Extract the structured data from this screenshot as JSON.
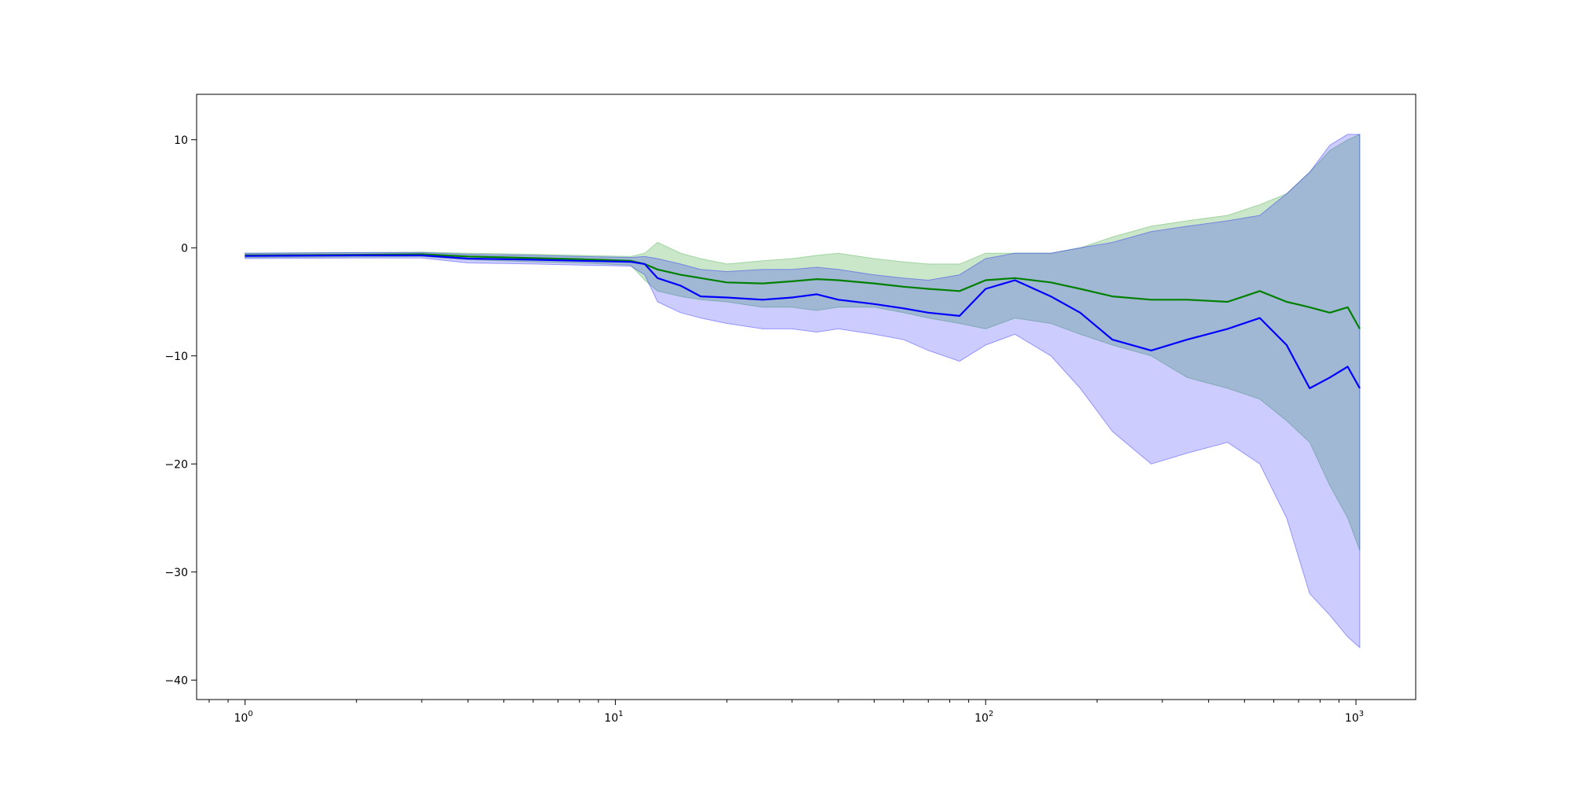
{
  "chart_data": {
    "type": "line",
    "title": "",
    "xlabel": "",
    "ylabel": "",
    "xscale": "log",
    "xlim": [
      0.74,
      1450
    ],
    "ylim": [
      -41.8,
      14.2
    ],
    "grid": false,
    "legend": "none",
    "x_ticks": [
      {
        "value": 1,
        "base": "10",
        "exp": "0"
      },
      {
        "value": 10,
        "base": "10",
        "exp": "1"
      },
      {
        "value": 100,
        "base": "10",
        "exp": "2"
      },
      {
        "value": 1000,
        "base": "10",
        "exp": "3"
      }
    ],
    "y_ticks": [
      {
        "value": 10,
        "label": "10"
      },
      {
        "value": 0,
        "label": "0"
      },
      {
        "value": -10,
        "label": "−10"
      },
      {
        "value": -20,
        "label": "−20"
      },
      {
        "value": -30,
        "label": "−30"
      },
      {
        "value": -40,
        "label": "−40"
      }
    ],
    "series": [
      {
        "color": "#008000",
        "band_color": "#2ca02c",
        "band_opacity": 0.25,
        "points": [
          {
            "x": 1,
            "y": -0.7,
            "lo": -0.9,
            "hi": -0.5
          },
          {
            "x": 2,
            "y": -0.65,
            "lo": -0.85,
            "hi": -0.45
          },
          {
            "x": 3,
            "y": -0.6,
            "lo": -0.8,
            "hi": -0.4
          },
          {
            "x": 4,
            "y": -0.8,
            "lo": -1.1,
            "hi": -0.5
          },
          {
            "x": 6,
            "y": -0.95,
            "lo": -1.3,
            "hi": -0.6
          },
          {
            "x": 8,
            "y": -1.05,
            "lo": -1.4,
            "hi": -0.7
          },
          {
            "x": 11,
            "y": -1.2,
            "lo": -1.6,
            "hi": -0.8
          },
          {
            "x": 12,
            "y": -1.5,
            "lo": -3.0,
            "hi": -0.5
          },
          {
            "x": 13,
            "y": -2.0,
            "lo": -4.0,
            "hi": 0.5
          },
          {
            "x": 15,
            "y": -2.5,
            "lo": -4.5,
            "hi": -0.5
          },
          {
            "x": 17,
            "y": -2.8,
            "lo": -4.8,
            "hi": -1.0
          },
          {
            "x": 20,
            "y": -3.2,
            "lo": -5.0,
            "hi": -1.5
          },
          {
            "x": 25,
            "y": -3.3,
            "lo": -5.5,
            "hi": -1.2
          },
          {
            "x": 30,
            "y": -3.1,
            "lo": -5.5,
            "hi": -1.0
          },
          {
            "x": 35,
            "y": -2.9,
            "lo": -5.8,
            "hi": -0.7
          },
          {
            "x": 40,
            "y": -3.0,
            "lo": -5.5,
            "hi": -0.5
          },
          {
            "x": 50,
            "y": -3.3,
            "lo": -5.5,
            "hi": -1.0
          },
          {
            "x": 60,
            "y": -3.6,
            "lo": -6.0,
            "hi": -1.3
          },
          {
            "x": 70,
            "y": -3.8,
            "lo": -6.5,
            "hi": -1.5
          },
          {
            "x": 85,
            "y": -4.0,
            "lo": -7.0,
            "hi": -1.5
          },
          {
            "x": 100,
            "y": -3.0,
            "lo": -7.5,
            "hi": -0.5
          },
          {
            "x": 120,
            "y": -2.8,
            "lo": -6.5,
            "hi": -0.5
          },
          {
            "x": 150,
            "y": -3.2,
            "lo": -7.0,
            "hi": -0.5
          },
          {
            "x": 180,
            "y": -3.8,
            "lo": -8.0,
            "hi": 0.0
          },
          {
            "x": 220,
            "y": -4.5,
            "lo": -9.0,
            "hi": 1.0
          },
          {
            "x": 280,
            "y": -4.8,
            "lo": -10.0,
            "hi": 2.0
          },
          {
            "x": 350,
            "y": -4.8,
            "lo": -12.0,
            "hi": 2.5
          },
          {
            "x": 450,
            "y": -5.0,
            "lo": -13.0,
            "hi": 3.0
          },
          {
            "x": 550,
            "y": -4.0,
            "lo": -14.0,
            "hi": 4.0
          },
          {
            "x": 650,
            "y": -5.0,
            "lo": -16.0,
            "hi": 5.0
          },
          {
            "x": 750,
            "y": -5.5,
            "lo": -18.0,
            "hi": 7.0
          },
          {
            "x": 850,
            "y": -6.0,
            "lo": -22.0,
            "hi": 9.0
          },
          {
            "x": 950,
            "y": -5.5,
            "lo": -25.0,
            "hi": 10.0
          },
          {
            "x": 1024,
            "y": -7.5,
            "lo": -28.0,
            "hi": 10.5
          }
        ]
      },
      {
        "color": "#0000ff",
        "band_color": "#0000ff",
        "band_opacity": 0.2,
        "points": [
          {
            "x": 1,
            "y": -0.75,
            "lo": -1.0,
            "hi": -0.5
          },
          {
            "x": 2,
            "y": -0.7,
            "lo": -0.95,
            "hi": -0.45
          },
          {
            "x": 3,
            "y": -0.7,
            "lo": -0.95,
            "hi": -0.45
          },
          {
            "x": 4,
            "y": -1.0,
            "lo": -1.4,
            "hi": -0.6
          },
          {
            "x": 6,
            "y": -1.1,
            "lo": -1.5,
            "hi": -0.7
          },
          {
            "x": 8,
            "y": -1.2,
            "lo": -1.6,
            "hi": -0.8
          },
          {
            "x": 11,
            "y": -1.3,
            "lo": -1.7,
            "hi": -0.9
          },
          {
            "x": 12,
            "y": -1.5,
            "lo": -2.5,
            "hi": -0.8
          },
          {
            "x": 13,
            "y": -2.8,
            "lo": -5.0,
            "hi": -1.0
          },
          {
            "x": 15,
            "y": -3.5,
            "lo": -6.0,
            "hi": -1.5
          },
          {
            "x": 17,
            "y": -4.5,
            "lo": -6.5,
            "hi": -2.0
          },
          {
            "x": 20,
            "y": -4.6,
            "lo": -7.0,
            "hi": -2.2
          },
          {
            "x": 25,
            "y": -4.8,
            "lo": -7.5,
            "hi": -2.0
          },
          {
            "x": 30,
            "y": -4.6,
            "lo": -7.5,
            "hi": -2.0
          },
          {
            "x": 35,
            "y": -4.3,
            "lo": -7.8,
            "hi": -1.8
          },
          {
            "x": 40,
            "y": -4.8,
            "lo": -7.5,
            "hi": -2.0
          },
          {
            "x": 50,
            "y": -5.2,
            "lo": -8.0,
            "hi": -2.5
          },
          {
            "x": 60,
            "y": -5.6,
            "lo": -8.5,
            "hi": -2.8
          },
          {
            "x": 70,
            "y": -6.0,
            "lo": -9.5,
            "hi": -3.0
          },
          {
            "x": 85,
            "y": -6.3,
            "lo": -10.5,
            "hi": -2.5
          },
          {
            "x": 100,
            "y": -3.8,
            "lo": -9.0,
            "hi": -1.0
          },
          {
            "x": 120,
            "y": -3.0,
            "lo": -8.0,
            "hi": -0.5
          },
          {
            "x": 150,
            "y": -4.5,
            "lo": -10.0,
            "hi": -0.5
          },
          {
            "x": 180,
            "y": -6.0,
            "lo": -13.0,
            "hi": 0.0
          },
          {
            "x": 220,
            "y": -8.5,
            "lo": -17.0,
            "hi": 0.5
          },
          {
            "x": 280,
            "y": -9.5,
            "lo": -20.0,
            "hi": 1.5
          },
          {
            "x": 350,
            "y": -8.5,
            "lo": -19.0,
            "hi": 2.0
          },
          {
            "x": 450,
            "y": -7.5,
            "lo": -18.0,
            "hi": 2.5
          },
          {
            "x": 550,
            "y": -6.5,
            "lo": -20.0,
            "hi": 3.0
          },
          {
            "x": 650,
            "y": -9.0,
            "lo": -25.0,
            "hi": 5.0
          },
          {
            "x": 750,
            "y": -13.0,
            "lo": -32.0,
            "hi": 7.0
          },
          {
            "x": 850,
            "y": -12.0,
            "lo": -34.0,
            "hi": 9.5
          },
          {
            "x": 950,
            "y": -11.0,
            "lo": -36.0,
            "hi": 10.5
          },
          {
            "x": 1024,
            "y": -13.0,
            "lo": -37.0,
            "hi": 10.5
          }
        ]
      }
    ]
  }
}
